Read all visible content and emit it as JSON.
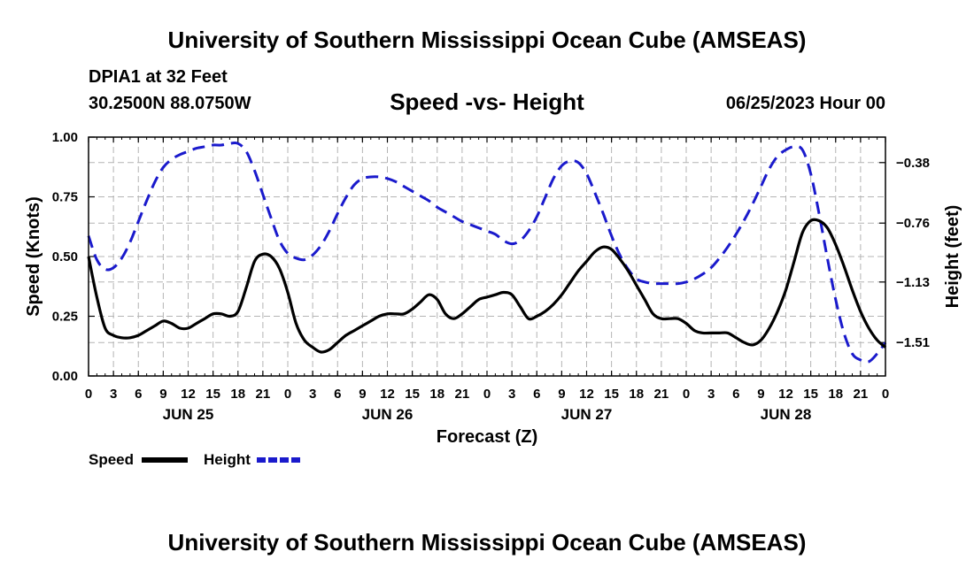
{
  "header": {
    "title": "University of Southern Mississippi Ocean Cube (AMSEAS)",
    "station": "DPIA1 at 32 Feet",
    "coords": "30.2500N  88.0750W",
    "subtitle": "Speed -vs- Height",
    "datetime": "06/25/2023 Hour 00"
  },
  "footer": {
    "title": "University of Southern Mississippi Ocean Cube (AMSEAS)"
  },
  "colors": {
    "speed": "#000000",
    "height": "#1a1acc",
    "grid": "#b4b4b4"
  },
  "chart_data": {
    "type": "line",
    "xlabel": "Forecast (Z)",
    "ylabel_left": "Speed (Knots)",
    "ylabel_right": "Height (feet)",
    "x_unit": "hours since 06/25/2023 00Z",
    "xlim": [
      0,
      96
    ],
    "ylim_left": [
      0,
      1.0
    ],
    "ylim_right": [
      -1.72,
      -0.22
    ],
    "grid": true,
    "x_tick_labels": [
      "0",
      "3",
      "6",
      "9",
      "12",
      "15",
      "18",
      "21",
      "0",
      "3",
      "6",
      "9",
      "12",
      "15",
      "18",
      "21",
      "0",
      "3",
      "6",
      "9",
      "12",
      "15",
      "18",
      "21",
      "0",
      "3",
      "6",
      "9",
      "12",
      "15",
      "18",
      "21",
      "0"
    ],
    "day_labels": [
      {
        "x": 12,
        "label": "JUN 25"
      },
      {
        "x": 36,
        "label": "JUN 26"
      },
      {
        "x": 60,
        "label": "JUN 27"
      },
      {
        "x": 84,
        "label": "JUN 28"
      }
    ],
    "y_ticks_left": [
      {
        "value": 0.0,
        "label": "0.00"
      },
      {
        "value": 0.25,
        "label": "0.25"
      },
      {
        "value": 0.5,
        "label": "0.50"
      },
      {
        "value": 0.75,
        "label": "0.75"
      },
      {
        "value": 1.0,
        "label": "1.00"
      }
    ],
    "y_ticks_right": [
      {
        "value": -0.38,
        "label": "−0.38"
      },
      {
        "value": -0.76,
        "label": "−0.76"
      },
      {
        "value": -1.13,
        "label": "−1.13"
      },
      {
        "value": -1.51,
        "label": "−1.51"
      }
    ],
    "legend": [
      {
        "name": "Speed",
        "style": "solid"
      },
      {
        "name": "Height",
        "style": "dashed"
      }
    ],
    "series": [
      {
        "name": "Speed",
        "axis": "left",
        "x": [
          0,
          1,
          2,
          3,
          4,
          5,
          6,
          7,
          8,
          9,
          10,
          11,
          12,
          13,
          14,
          15,
          16,
          17,
          18,
          19,
          20,
          21,
          22,
          23,
          24,
          25,
          26,
          27,
          28,
          29,
          30,
          31,
          32,
          33,
          34,
          35,
          36,
          37,
          38,
          39,
          40,
          41,
          42,
          43,
          44,
          45,
          46,
          47,
          48,
          49,
          50,
          51,
          52,
          53,
          54,
          55,
          56,
          57,
          58,
          59,
          60,
          61,
          62,
          63,
          64,
          65,
          66,
          67,
          68,
          69,
          70,
          71,
          72,
          73,
          74,
          75,
          76,
          77,
          78,
          79,
          80,
          81,
          82,
          83,
          84,
          85,
          86,
          87,
          88,
          89,
          90,
          91,
          92,
          93,
          94,
          95,
          96
        ],
        "values": [
          0.5,
          0.33,
          0.2,
          0.17,
          0.16,
          0.16,
          0.17,
          0.19,
          0.21,
          0.23,
          0.22,
          0.2,
          0.2,
          0.22,
          0.24,
          0.26,
          0.26,
          0.25,
          0.27,
          0.37,
          0.48,
          0.51,
          0.5,
          0.45,
          0.35,
          0.22,
          0.15,
          0.12,
          0.1,
          0.11,
          0.14,
          0.17,
          0.19,
          0.21,
          0.23,
          0.25,
          0.26,
          0.26,
          0.26,
          0.28,
          0.31,
          0.34,
          0.32,
          0.26,
          0.24,
          0.26,
          0.29,
          0.32,
          0.33,
          0.34,
          0.35,
          0.34,
          0.29,
          0.24,
          0.25,
          0.27,
          0.3,
          0.34,
          0.39,
          0.44,
          0.48,
          0.52,
          0.54,
          0.53,
          0.49,
          0.44,
          0.38,
          0.32,
          0.26,
          0.24,
          0.24,
          0.24,
          0.22,
          0.19,
          0.18,
          0.18,
          0.18,
          0.18,
          0.16,
          0.14,
          0.13,
          0.15,
          0.2,
          0.27,
          0.36,
          0.48,
          0.6,
          0.65,
          0.65,
          0.62,
          0.55,
          0.46,
          0.36,
          0.27,
          0.2,
          0.15,
          0.12
        ]
      },
      {
        "name": "Height",
        "axis": "right",
        "x": [
          0,
          1,
          2,
          3,
          4,
          5,
          6,
          7,
          8,
          9,
          10,
          11,
          12,
          13,
          14,
          15,
          16,
          17,
          18,
          19,
          20,
          21,
          22,
          23,
          24,
          25,
          26,
          27,
          28,
          29,
          30,
          31,
          32,
          33,
          34,
          35,
          36,
          37,
          38,
          39,
          40,
          41,
          42,
          43,
          44,
          45,
          46,
          47,
          48,
          49,
          50,
          51,
          52,
          53,
          54,
          55,
          56,
          57,
          58,
          59,
          60,
          61,
          62,
          63,
          64,
          65,
          66,
          67,
          68,
          69,
          70,
          71,
          72,
          73,
          74,
          75,
          76,
          77,
          78,
          79,
          80,
          81,
          82,
          83,
          84,
          85,
          86,
          87,
          88,
          89,
          90,
          91,
          92,
          93,
          94,
          95,
          96
        ],
        "values": [
          -0.84,
          -0.99,
          -1.05,
          -1.04,
          -0.98,
          -0.88,
          -0.75,
          -0.62,
          -0.5,
          -0.41,
          -0.36,
          -0.33,
          -0.31,
          -0.29,
          -0.28,
          -0.27,
          -0.27,
          -0.26,
          -0.26,
          -0.31,
          -0.43,
          -0.58,
          -0.73,
          -0.87,
          -0.95,
          -0.98,
          -0.99,
          -0.96,
          -0.9,
          -0.81,
          -0.7,
          -0.6,
          -0.52,
          -0.48,
          -0.47,
          -0.47,
          -0.48,
          -0.5,
          -0.53,
          -0.56,
          -0.59,
          -0.62,
          -0.66,
          -0.69,
          -0.72,
          -0.75,
          -0.77,
          -0.79,
          -0.81,
          -0.83,
          -0.87,
          -0.89,
          -0.87,
          -0.81,
          -0.72,
          -0.6,
          -0.48,
          -0.4,
          -0.37,
          -0.38,
          -0.45,
          -0.57,
          -0.7,
          -0.84,
          -0.96,
          -1.05,
          -1.11,
          -1.13,
          -1.14,
          -1.14,
          -1.14,
          -1.14,
          -1.13,
          -1.11,
          -1.08,
          -1.04,
          -0.98,
          -0.91,
          -0.83,
          -0.74,
          -0.64,
          -0.53,
          -0.42,
          -0.34,
          -0.3,
          -0.28,
          -0.3,
          -0.45,
          -0.7,
          -0.98,
          -1.24,
          -1.45,
          -1.58,
          -1.62,
          -1.63,
          -1.58,
          -1.51
        ]
      }
    ]
  }
}
